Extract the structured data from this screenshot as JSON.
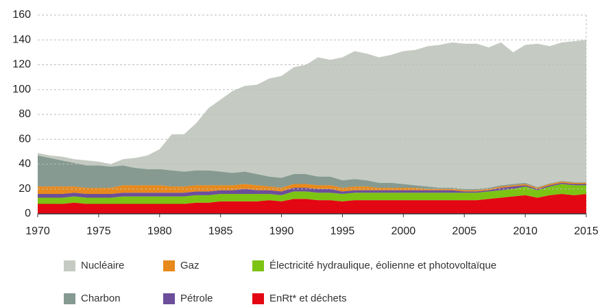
{
  "chart_data": {
    "type": "stacked-area",
    "x": [
      1970,
      1971,
      1972,
      1973,
      1974,
      1975,
      1976,
      1977,
      1978,
      1979,
      1980,
      1981,
      1982,
      1983,
      1984,
      1985,
      1986,
      1987,
      1988,
      1989,
      1990,
      1991,
      1992,
      1993,
      1994,
      1995,
      1996,
      1997,
      1998,
      1999,
      2000,
      2001,
      2002,
      2003,
      2004,
      2005,
      2006,
      2007,
      2008,
      2009,
      2010,
      2011,
      2012,
      2013,
      2014,
      2015
    ],
    "xlim": [
      1970,
      2015
    ],
    "xticks": [
      1970,
      1975,
      1980,
      1985,
      1990,
      1995,
      2000,
      2005,
      2010,
      2015
    ],
    "ylim": [
      0,
      160
    ],
    "yticks": [
      0,
      20,
      40,
      60,
      80,
      100,
      120,
      140,
      160
    ],
    "grid": true,
    "series": [
      {
        "name": "EnRt* et déchets",
        "color": "#e30613",
        "values": [
          8,
          8,
          8,
          9,
          8,
          8,
          8,
          8,
          8,
          8,
          8,
          8,
          8,
          9,
          9,
          10,
          10,
          10,
          10,
          11,
          10,
          12,
          12,
          11,
          11,
          10,
          11,
          11,
          11,
          11,
          11,
          11,
          11,
          11,
          11,
          11,
          11,
          12,
          13,
          14,
          15,
          13,
          15,
          16,
          15,
          16
        ]
      },
      {
        "name": "Électricité hydraulique, éolienne et photovoltaïque",
        "color": "#7cc314",
        "values": [
          5,
          5,
          5,
          5,
          5,
          5,
          5,
          6,
          6,
          6,
          6,
          6,
          6,
          6,
          6,
          6,
          6,
          6,
          6,
          5,
          5,
          6,
          6,
          6,
          6,
          6,
          6,
          6,
          6,
          6,
          6,
          6,
          6,
          6,
          6,
          6,
          6,
          6,
          6,
          6,
          7,
          6,
          7,
          8,
          8,
          7
        ]
      },
      {
        "name": "Pétrole",
        "color": "#6c4e9b",
        "values": [
          3,
          3,
          3,
          3,
          3,
          3,
          3,
          3,
          3,
          3,
          3,
          3,
          3,
          3,
          3,
          3,
          3,
          4,
          3,
          3,
          3,
          3,
          3,
          3,
          3,
          2,
          2,
          2,
          2,
          2,
          2,
          2,
          2,
          2,
          2,
          1,
          1,
          1,
          2,
          2,
          1,
          1,
          1,
          1,
          1,
          1
        ]
      },
      {
        "name": "Gaz",
        "color": "#e8891b",
        "values": [
          6,
          6,
          6,
          5,
          5,
          5,
          5,
          6,
          6,
          6,
          6,
          5,
          5,
          5,
          5,
          4,
          4,
          4,
          4,
          3,
          3,
          3,
          3,
          3,
          3,
          3,
          3,
          3,
          2,
          2,
          2,
          2,
          1,
          1,
          1,
          1,
          1,
          1,
          1,
          1,
          1,
          1,
          1,
          1,
          1,
          1
        ]
      },
      {
        "name": "Charbon",
        "color": "#869a91",
        "values": [
          25,
          23,
          21,
          19,
          18,
          18,
          17,
          16,
          14,
          13,
          13,
          13,
          12,
          12,
          12,
          11,
          10,
          10,
          9,
          8,
          8,
          8,
          8,
          7,
          7,
          6,
          6,
          5,
          4,
          4,
          3,
          2,
          2,
          1,
          1,
          1,
          1,
          1,
          1,
          1,
          1,
          0.5,
          0.5,
          0.5,
          0.5,
          0.5
        ]
      },
      {
        "name": "Nucléaire",
        "color": "#c5cbc2",
        "values": [
          2,
          2,
          3,
          3,
          4,
          3,
          2,
          5,
          8,
          11,
          16,
          29,
          30,
          38,
          50,
          58,
          66,
          69,
          72,
          79,
          82,
          86,
          88,
          96,
          94,
          99,
          103,
          102,
          101,
          103,
          107,
          109,
          113,
          115,
          117,
          117,
          117,
          113,
          115,
          106,
          111,
          115.5,
          110.5,
          111.5,
          113.5,
          114.5
        ]
      }
    ]
  }
}
